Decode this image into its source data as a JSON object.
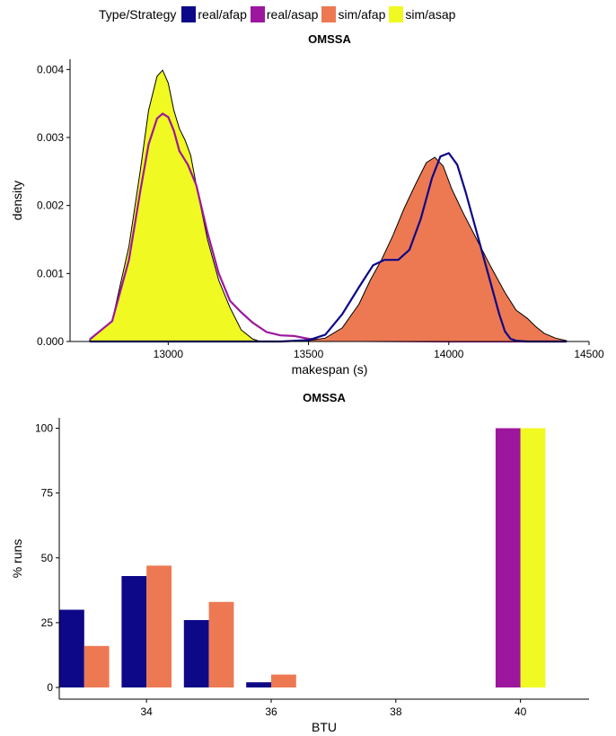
{
  "legend": {
    "title": "Type/Strategy",
    "items": [
      {
        "label": "real/afap",
        "color": "#0d0887"
      },
      {
        "label": "real/asap",
        "color": "#9c179e"
      },
      {
        "label": "sim/afap",
        "color": "#ed7953"
      },
      {
        "label": "sim/asap",
        "color": "#f0f921"
      }
    ]
  },
  "chart_data": [
    {
      "type": "area",
      "title": "OMSSA",
      "xlabel": "makespan (s)",
      "ylabel": "density",
      "xlim": [
        12650,
        14500
      ],
      "ylim": [
        0,
        0.00415
      ],
      "xticks": [
        13000,
        13500,
        14000,
        14500
      ],
      "xtick_labels": [
        "13000",
        "13500",
        "14000",
        "14500"
      ],
      "yticks": [
        0,
        0.001,
        0.002,
        0.003,
        0.004
      ],
      "ytick_labels": [
        "0.000",
        "0.001",
        "0.002",
        "0.003",
        "0.004"
      ],
      "grid": false,
      "legend_position": "top",
      "series": [
        {
          "name": "sim/asap",
          "style": "filled",
          "color": "#f0f921",
          "line_color": "#000000",
          "x": [
            12720,
            12800,
            12860,
            12900,
            12930,
            12960,
            12980,
            13000,
            13020,
            13040,
            13060,
            13080,
            13100,
            13140,
            13180,
            13220,
            13260,
            13300,
            13320,
            13350
          ],
          "y": [
            2e-05,
            0.0003,
            0.0014,
            0.0025,
            0.0034,
            0.0039,
            0.00399,
            0.0038,
            0.0034,
            0.00313,
            0.00296,
            0.00274,
            0.0023,
            0.0015,
            0.0009,
            0.0005,
            0.00017,
            4e-05,
            1e-05,
            0
          ]
        },
        {
          "name": "real/asap",
          "style": "line",
          "color": "#9c179e",
          "x": [
            12720,
            12800,
            12860,
            12900,
            12930,
            12960,
            12980,
            13000,
            13020,
            13040,
            13070,
            13100,
            13140,
            13180,
            13220,
            13260,
            13300,
            13350,
            13400,
            13450,
            13500,
            13550,
            13600,
            14000,
            14420
          ],
          "y": [
            3e-05,
            0.0003,
            0.0012,
            0.0022,
            0.0029,
            0.00328,
            0.00335,
            0.0033,
            0.0031,
            0.0028,
            0.0026,
            0.0023,
            0.0016,
            0.001,
            0.0006,
            0.00043,
            0.00028,
            0.00014,
            9e-05,
            8e-05,
            4e-05,
            2e-05,
            1e-05,
            0,
            0
          ]
        },
        {
          "name": "sim/afap",
          "style": "filled",
          "color": "#ed7953",
          "line_color": "#000000",
          "x": [
            13480,
            13560,
            13620,
            13680,
            13720,
            13760,
            13800,
            13840,
            13880,
            13920,
            13950,
            13980,
            14010,
            14050,
            14100,
            14150,
            14200,
            14240,
            14280,
            14310,
            14340,
            14380,
            14420
          ],
          "y": [
            0,
            5e-05,
            0.0002,
            0.00055,
            0.0009,
            0.0012,
            0.00155,
            0.00195,
            0.0023,
            0.00263,
            0.00271,
            0.00258,
            0.00225,
            0.0019,
            0.0015,
            0.0011,
            0.00072,
            0.00046,
            0.00034,
            0.00022,
            0.00012,
            5e-05,
            1e-05
          ]
        },
        {
          "name": "real/afap",
          "style": "line",
          "color": "#0d0887",
          "x": [
            12720,
            13400,
            13500,
            13560,
            13620,
            13680,
            13730,
            13770,
            13820,
            13860,
            13900,
            13940,
            13970,
            14000,
            14030,
            14060,
            14100,
            14140,
            14180,
            14200,
            14220,
            14240,
            14280,
            14420
          ],
          "y": [
            0,
            0,
            2e-05,
            0.0001,
            0.0004,
            0.0008,
            0.00112,
            0.0012,
            0.0012,
            0.00135,
            0.0018,
            0.0024,
            0.00272,
            0.00277,
            0.0026,
            0.0022,
            0.0016,
            0.001,
            0.0004,
            0.00015,
            4e-05,
            1e-05,
            0,
            0
          ]
        }
      ]
    },
    {
      "type": "bar",
      "title": "OMSSA",
      "xlabel": "BTU",
      "ylabel": "% runs",
      "xlim": [
        32.6,
        41.1
      ],
      "ylim": [
        0,
        104
      ],
      "xticks": [
        34,
        36,
        38,
        40
      ],
      "xtick_labels": [
        "34",
        "36",
        "38",
        "40"
      ],
      "yticks": [
        0,
        25,
        50,
        75,
        100
      ],
      "ytick_labels": [
        "0",
        "25",
        "50",
        "75",
        "100"
      ],
      "grid": false,
      "bar_width": 0.8,
      "series": [
        {
          "name": "real/afap",
          "color": "#0d0887",
          "x": [
            33,
            34,
            35,
            36
          ],
          "values": [
            30,
            43,
            26,
            2
          ]
        },
        {
          "name": "sim/afap",
          "color": "#ed7953",
          "x": [
            33,
            34,
            35,
            36
          ],
          "values": [
            16,
            47,
            33,
            5
          ]
        },
        {
          "name": "real/asap",
          "color": "#9c179e",
          "x": [
            40
          ],
          "values": [
            100
          ]
        },
        {
          "name": "sim/asap",
          "color": "#f0f921",
          "x": [
            40
          ],
          "values": [
            100
          ]
        }
      ]
    }
  ]
}
